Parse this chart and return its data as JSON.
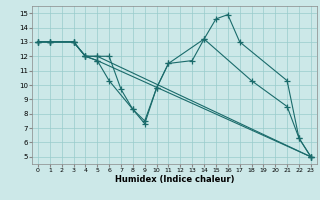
{
  "xlabel": "Humidex (Indice chaleur)",
  "bg_color": "#cce8e8",
  "grid_color": "#99cccc",
  "line_color": "#1a6b6b",
  "marker": "+",
  "markersize": 4,
  "linewidth": 0.8,
  "xlim": [
    -0.5,
    23.5
  ],
  "ylim": [
    4.5,
    15.5
  ],
  "xticks": [
    0,
    1,
    2,
    3,
    4,
    5,
    6,
    7,
    8,
    9,
    10,
    11,
    12,
    13,
    14,
    15,
    16,
    17,
    18,
    19,
    20,
    21,
    22,
    23
  ],
  "yticks": [
    5,
    6,
    7,
    8,
    9,
    10,
    11,
    12,
    13,
    14,
    15
  ],
  "lines": [
    {
      "x": [
        0,
        1,
        3,
        4,
        5,
        6,
        7,
        8,
        9,
        10,
        11,
        14,
        15,
        16,
        17,
        21,
        22,
        23
      ],
      "y": [
        13,
        13,
        13,
        12,
        12,
        12,
        9.7,
        8.3,
        7.5,
        9.8,
        11.5,
        13.2,
        14.6,
        14.9,
        13.0,
        10.3,
        6.3,
        5.0
      ]
    },
    {
      "x": [
        0,
        1,
        3,
        4,
        5,
        6,
        8,
        9,
        10,
        11,
        13,
        14,
        18,
        21,
        22,
        23
      ],
      "y": [
        13,
        13,
        13,
        12,
        11.7,
        10.3,
        8.3,
        7.3,
        9.8,
        11.5,
        11.7,
        13.2,
        10.3,
        8.5,
        6.3,
        5.0
      ]
    },
    {
      "x": [
        0,
        1,
        3,
        4,
        5,
        23
      ],
      "y": [
        13,
        13,
        13,
        12,
        12.0,
        5.0
      ]
    },
    {
      "x": [
        0,
        1,
        3,
        4,
        5,
        23
      ],
      "y": [
        13,
        13,
        13,
        12,
        11.7,
        5.0
      ]
    }
  ]
}
